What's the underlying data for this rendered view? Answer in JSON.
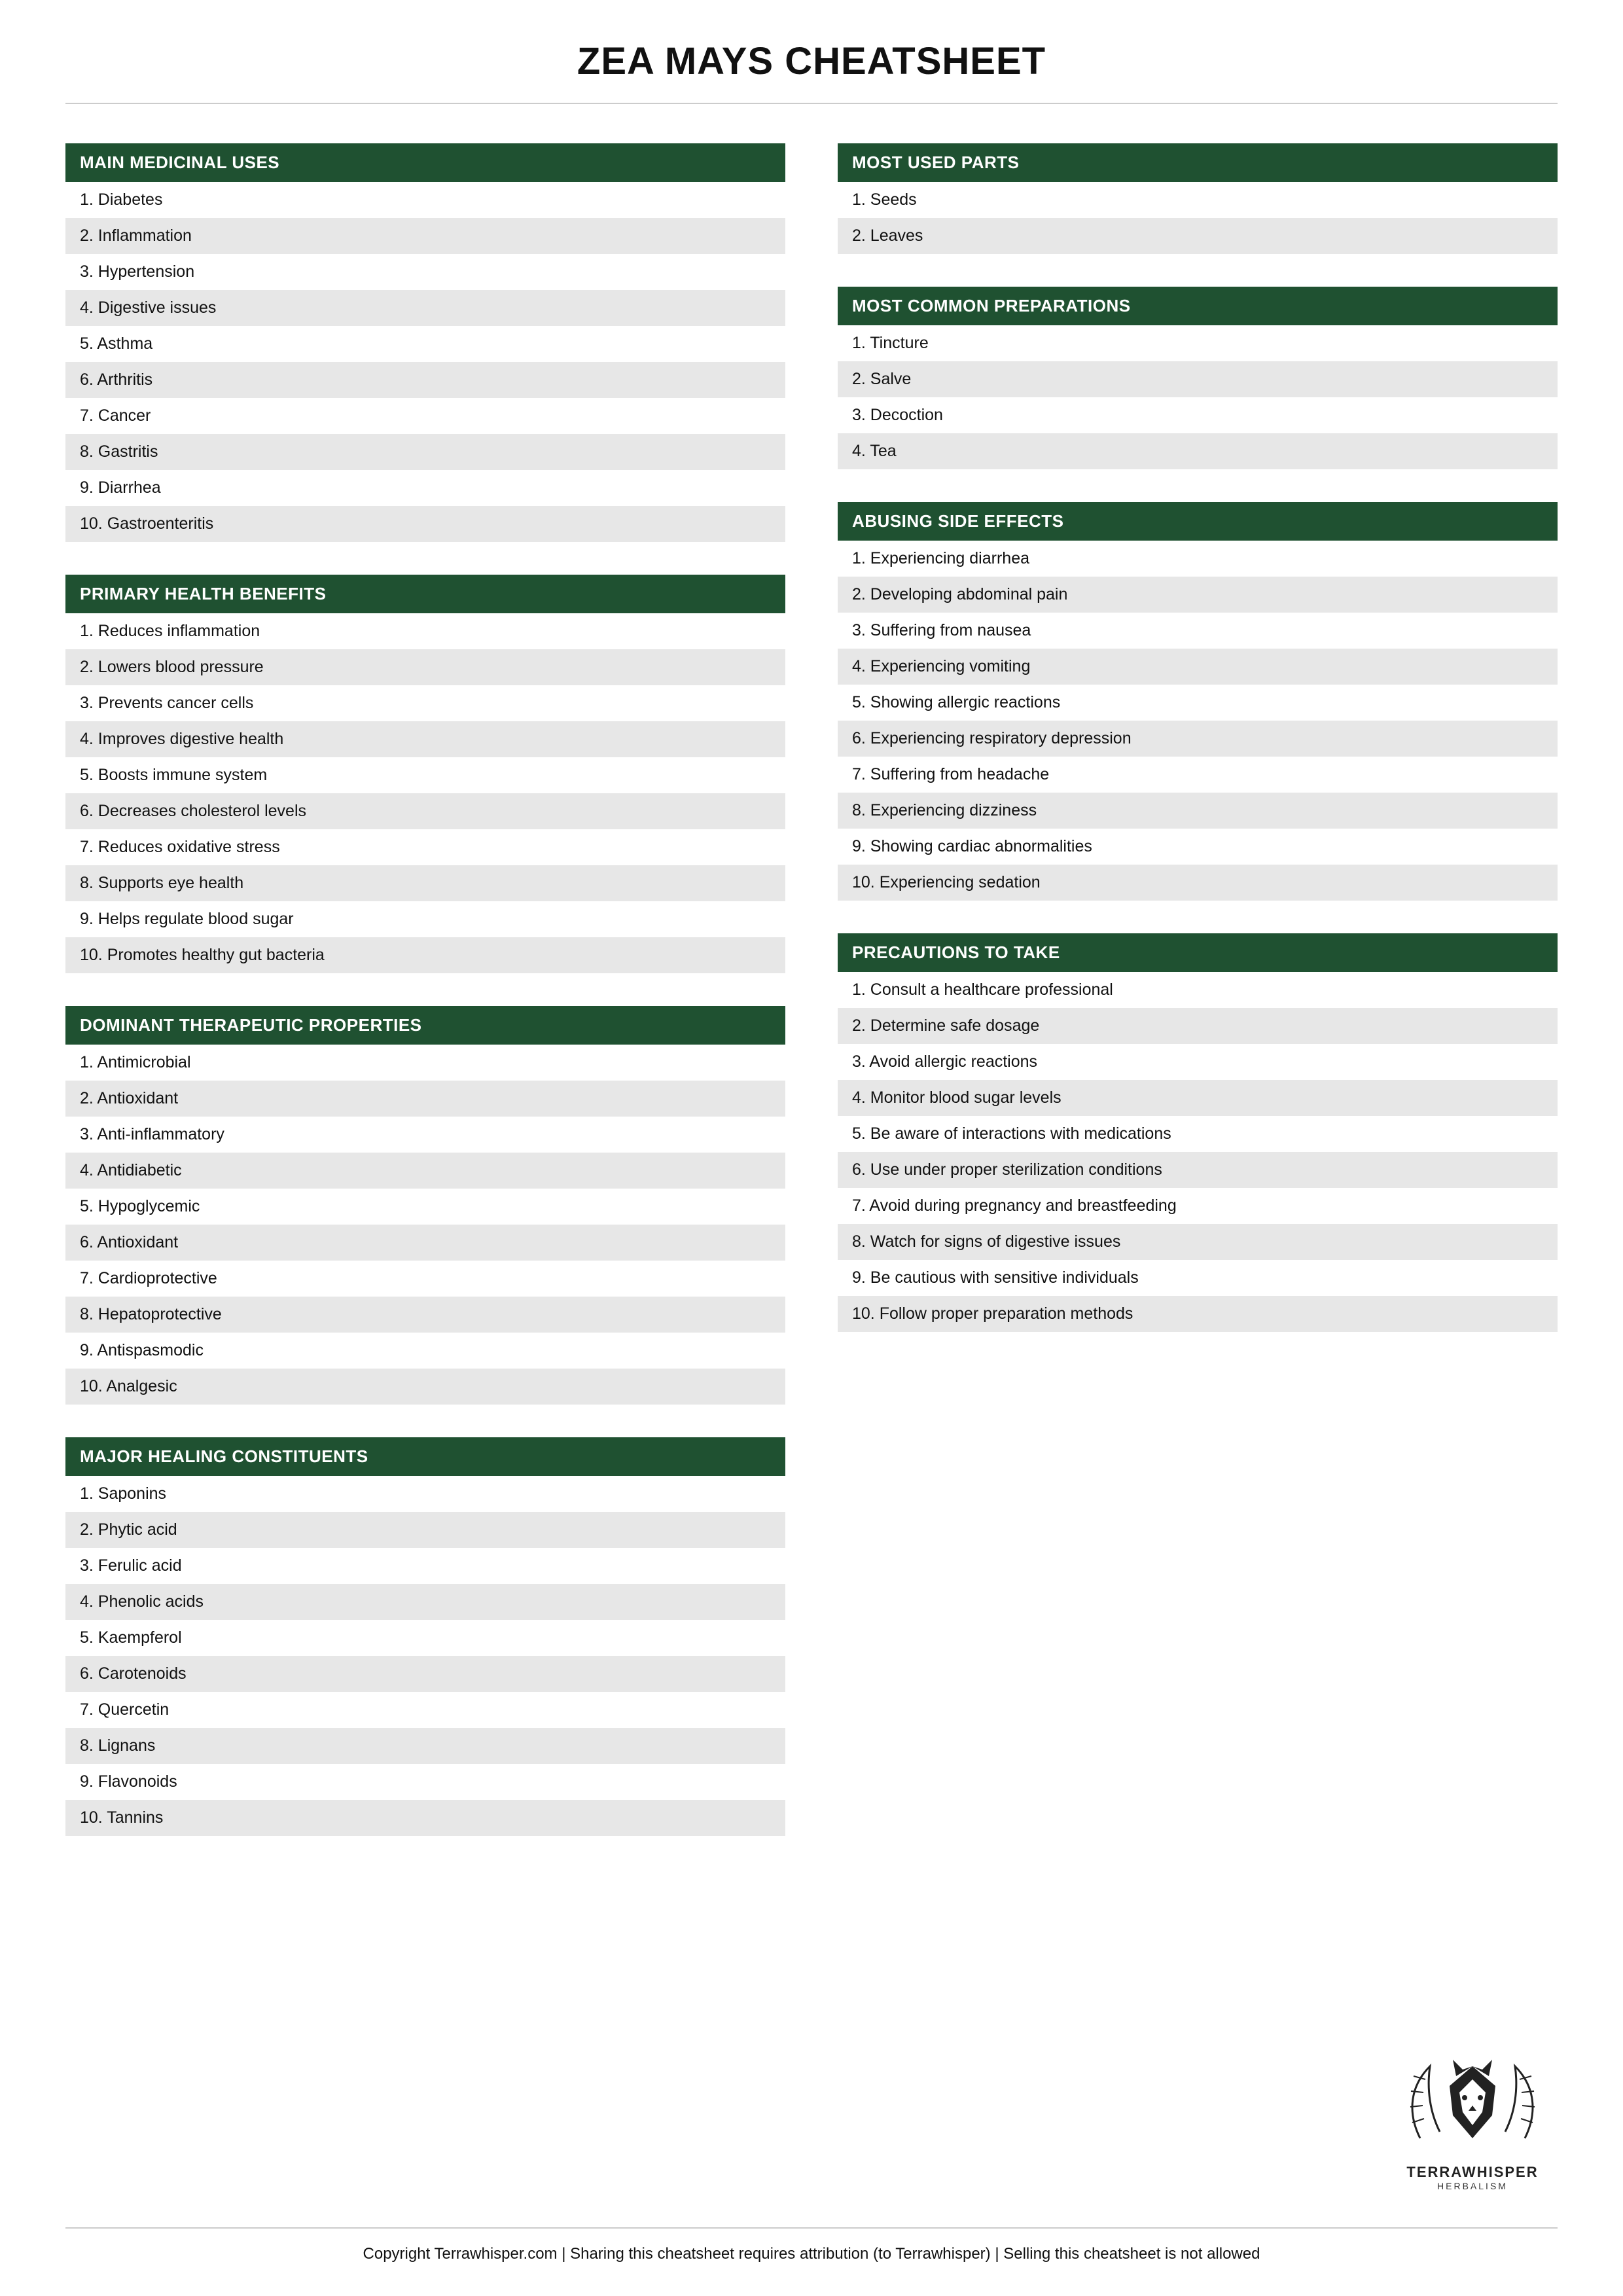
{
  "title": "ZEA MAYS CHEATSHEET",
  "colors": {
    "header_bg": "#1f5131",
    "header_text": "#ffffff",
    "row_alt": "#e7e7e7",
    "row_base": "#ffffff",
    "divider": "#cccccc",
    "text": "#111111"
  },
  "left_sections": [
    {
      "header": "MAIN MEDICINAL USES",
      "items": [
        "1. Diabetes",
        "2. Inflammation",
        "3. Hypertension",
        "4. Digestive issues",
        "5. Asthma",
        "6. Arthritis",
        "7. Cancer",
        "8. Gastritis",
        "9. Diarrhea",
        "10. Gastroenteritis"
      ]
    },
    {
      "header": "PRIMARY HEALTH BENEFITS",
      "items": [
        "1. Reduces inflammation",
        "2. Lowers blood pressure",
        "3. Prevents cancer cells",
        "4. Improves digestive health",
        "5. Boosts immune system",
        "6. Decreases cholesterol levels",
        "7. Reduces oxidative stress",
        "8. Supports eye health",
        "9. Helps regulate blood sugar",
        "10. Promotes healthy gut bacteria"
      ]
    },
    {
      "header": "DOMINANT THERAPEUTIC PROPERTIES",
      "items": [
        "1. Antimicrobial",
        "2. Antioxidant",
        "3. Anti-inflammatory",
        "4. Antidiabetic",
        "5. Hypoglycemic",
        "6. Antioxidant",
        "7. Cardioprotective",
        "8. Hepatoprotective",
        "9. Antispasmodic",
        "10. Analgesic"
      ]
    },
    {
      "header": "MAJOR HEALING CONSTITUENTS",
      "items": [
        "1. Saponins",
        "2. Phytic acid",
        "3. Ferulic acid",
        "4. Phenolic acids",
        "5. Kaempferol",
        "6. Carotenoids",
        "7. Quercetin",
        "8. Lignans",
        "9. Flavonoids",
        "10. Tannins"
      ]
    }
  ],
  "right_sections": [
    {
      "header": "MOST USED PARTS",
      "items": [
        "1. Seeds",
        "2. Leaves"
      ]
    },
    {
      "header": "MOST COMMON PREPARATIONS",
      "items": [
        "1. Tincture",
        "2. Salve",
        "3. Decoction",
        "4. Tea"
      ]
    },
    {
      "header": "ABUSING SIDE EFFECTS",
      "items": [
        "1. Experiencing diarrhea",
        "2. Developing abdominal pain",
        "3. Suffering from nausea",
        "4. Experiencing vomiting",
        "5. Showing allergic reactions",
        "6. Experiencing respiratory depression",
        "7. Suffering from headache",
        "8. Experiencing dizziness",
        "9. Showing cardiac abnormalities",
        "10. Experiencing sedation"
      ]
    },
    {
      "header": "PRECAUTIONS TO TAKE",
      "items": [
        "1. Consult a healthcare professional",
        "2. Determine safe dosage",
        "3. Avoid allergic reactions",
        "4. Monitor blood sugar levels",
        "5. Be aware of interactions with medications",
        "6. Use under proper sterilization conditions",
        "7. Avoid during pregnancy and breastfeeding",
        "8. Watch for signs of digestive issues",
        "9. Be cautious with sensitive individuals",
        "10. Follow proper preparation methods"
      ]
    }
  ],
  "brand": {
    "name": "TERRAWHISPER",
    "tagline": "HERBALISM"
  },
  "footer": "Copyright Terrawhisper.com | Sharing this cheatsheet requires attribution (to Terrawhisper) | Selling this cheatsheet is not allowed"
}
